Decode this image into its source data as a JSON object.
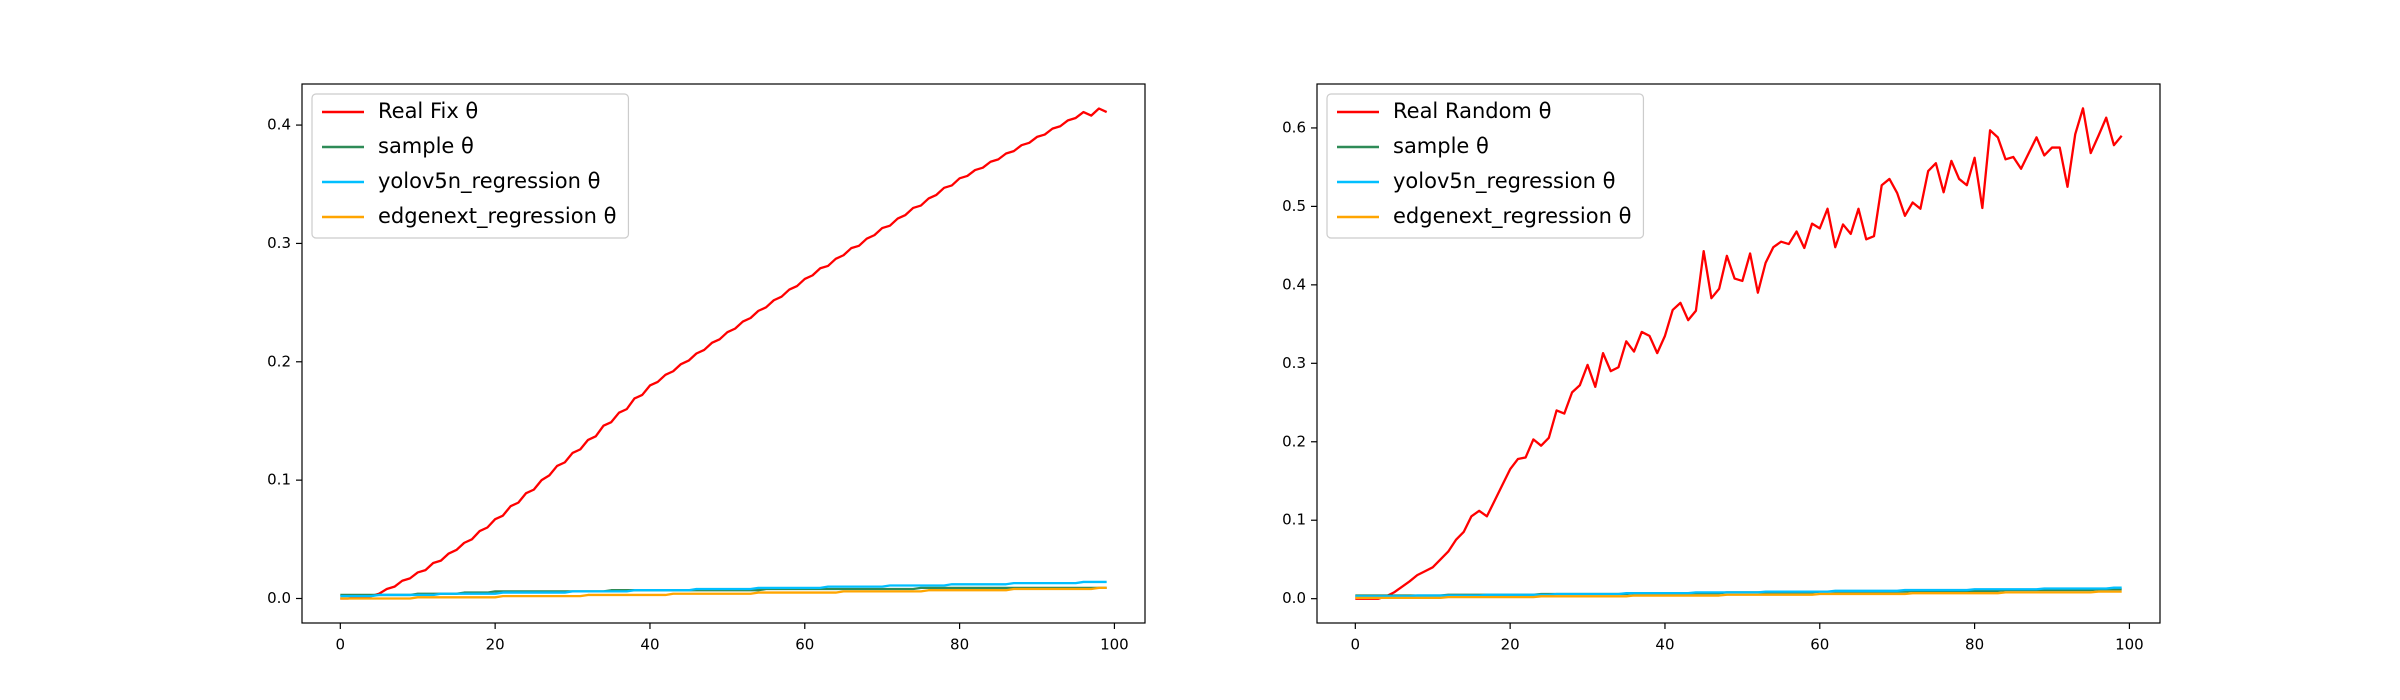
{
  "chart_data": [
    {
      "type": "line",
      "legend": "upper left",
      "xlim": [
        -4.95,
        103.95
      ],
      "ylim": [
        -0.0207,
        0.4347
      ],
      "xticks": [
        0,
        20,
        40,
        60,
        80,
        100
      ],
      "yticks": [
        {
          "value": 0,
          "label": "0.0"
        },
        0.1,
        0.2,
        0.3,
        0.4
      ],
      "x": [
        0,
        1,
        2,
        3,
        4,
        5,
        6,
        7,
        8,
        9,
        10,
        11,
        12,
        13,
        14,
        15,
        16,
        17,
        18,
        19,
        20,
        21,
        22,
        23,
        24,
        25,
        26,
        27,
        28,
        29,
        30,
        31,
        32,
        33,
        34,
        35,
        36,
        37,
        38,
        39,
        40,
        41,
        42,
        43,
        44,
        45,
        46,
        47,
        48,
        49,
        50,
        51,
        52,
        53,
        54,
        55,
        56,
        57,
        58,
        59,
        60,
        61,
        62,
        63,
        64,
        65,
        66,
        67,
        68,
        69,
        70,
        71,
        72,
        73,
        74,
        75,
        76,
        77,
        78,
        79,
        80,
        81,
        82,
        83,
        84,
        85,
        86,
        87,
        88,
        89,
        90,
        91,
        92,
        93,
        94,
        95,
        96,
        97,
        98,
        99
      ],
      "series": [
        {
          "name": "Real Fix θ",
          "color": "#ff0000",
          "values": [
            0.0,
            0.0,
            0.001,
            0.001,
            0.002,
            0.004,
            0.008,
            0.01,
            0.015,
            0.017,
            0.022,
            0.024,
            0.03,
            0.032,
            0.038,
            0.041,
            0.047,
            0.05,
            0.057,
            0.06,
            0.067,
            0.07,
            0.078,
            0.081,
            0.089,
            0.092,
            0.1,
            0.104,
            0.112,
            0.115,
            0.123,
            0.126,
            0.134,
            0.137,
            0.146,
            0.149,
            0.157,
            0.16,
            0.169,
            0.172,
            0.18,
            0.183,
            0.189,
            0.192,
            0.198,
            0.201,
            0.207,
            0.21,
            0.216,
            0.219,
            0.225,
            0.228,
            0.234,
            0.237,
            0.243,
            0.246,
            0.252,
            0.255,
            0.261,
            0.264,
            0.27,
            0.273,
            0.279,
            0.281,
            0.287,
            0.29,
            0.296,
            0.298,
            0.304,
            0.307,
            0.313,
            0.315,
            0.321,
            0.324,
            0.33,
            0.332,
            0.338,
            0.341,
            0.347,
            0.349,
            0.355,
            0.357,
            0.362,
            0.364,
            0.369,
            0.371,
            0.376,
            0.378,
            0.383,
            0.385,
            0.39,
            0.392,
            0.397,
            0.399,
            0.404,
            0.406,
            0.411,
            0.408,
            0.414,
            0.411
          ]
        },
        {
          "name": "sample θ",
          "color": "#2e8b57",
          "values": [
            0.003,
            0.003,
            0.003,
            0.003,
            0.003,
            0.003,
            0.003,
            0.003,
            0.003,
            0.003,
            0.004,
            0.004,
            0.004,
            0.004,
            0.004,
            0.004,
            0.005,
            0.005,
            0.005,
            0.005,
            0.006,
            0.006,
            0.006,
            0.006,
            0.006,
            0.006,
            0.006,
            0.006,
            0.006,
            0.006,
            0.006,
            0.006,
            0.006,
            0.006,
            0.006,
            0.007,
            0.007,
            0.007,
            0.007,
            0.007,
            0.007,
            0.007,
            0.007,
            0.007,
            0.007,
            0.007,
            0.007,
            0.007,
            0.007,
            0.007,
            0.007,
            0.007,
            0.007,
            0.007,
            0.007,
            0.008,
            0.008,
            0.008,
            0.008,
            0.008,
            0.008,
            0.008,
            0.008,
            0.008,
            0.008,
            0.008,
            0.008,
            0.008,
            0.008,
            0.008,
            0.008,
            0.008,
            0.008,
            0.008,
            0.008,
            0.009,
            0.009,
            0.009,
            0.009,
            0.009,
            0.009,
            0.009,
            0.009,
            0.009,
            0.009,
            0.009,
            0.009,
            0.009,
            0.009,
            0.009,
            0.009,
            0.009,
            0.009,
            0.009,
            0.009,
            0.009,
            0.009,
            0.009,
            0.009,
            0.009
          ]
        },
        {
          "name": "yolov5n_regression θ",
          "color": "#00bfff",
          "values": [
            0.002,
            0.002,
            0.002,
            0.002,
            0.002,
            0.003,
            0.003,
            0.003,
            0.003,
            0.003,
            0.003,
            0.003,
            0.003,
            0.004,
            0.004,
            0.004,
            0.004,
            0.004,
            0.004,
            0.004,
            0.004,
            0.005,
            0.005,
            0.005,
            0.005,
            0.005,
            0.005,
            0.005,
            0.005,
            0.005,
            0.006,
            0.006,
            0.006,
            0.006,
            0.006,
            0.006,
            0.006,
            0.006,
            0.007,
            0.007,
            0.007,
            0.007,
            0.007,
            0.007,
            0.007,
            0.007,
            0.008,
            0.008,
            0.008,
            0.008,
            0.008,
            0.008,
            0.008,
            0.008,
            0.009,
            0.009,
            0.009,
            0.009,
            0.009,
            0.009,
            0.009,
            0.009,
            0.009,
            0.01,
            0.01,
            0.01,
            0.01,
            0.01,
            0.01,
            0.01,
            0.01,
            0.011,
            0.011,
            0.011,
            0.011,
            0.011,
            0.011,
            0.011,
            0.011,
            0.012,
            0.012,
            0.012,
            0.012,
            0.012,
            0.012,
            0.012,
            0.012,
            0.013,
            0.013,
            0.013,
            0.013,
            0.013,
            0.013,
            0.013,
            0.013,
            0.013,
            0.014,
            0.014,
            0.014,
            0.014
          ]
        },
        {
          "name": "edgenext_regression θ",
          "color": "#ffa500",
          "values": [
            0.0,
            0.0,
            0.0,
            0.0,
            0.0,
            0.0,
            0.0,
            0.0,
            0.0,
            0.0,
            0.001,
            0.001,
            0.001,
            0.001,
            0.001,
            0.001,
            0.001,
            0.001,
            0.001,
            0.001,
            0.001,
            0.002,
            0.002,
            0.002,
            0.002,
            0.002,
            0.002,
            0.002,
            0.002,
            0.002,
            0.002,
            0.002,
            0.003,
            0.003,
            0.003,
            0.003,
            0.003,
            0.003,
            0.003,
            0.003,
            0.003,
            0.003,
            0.003,
            0.004,
            0.004,
            0.004,
            0.004,
            0.004,
            0.004,
            0.004,
            0.004,
            0.004,
            0.004,
            0.004,
            0.005,
            0.005,
            0.005,
            0.005,
            0.005,
            0.005,
            0.005,
            0.005,
            0.005,
            0.005,
            0.005,
            0.006,
            0.006,
            0.006,
            0.006,
            0.006,
            0.006,
            0.006,
            0.006,
            0.006,
            0.006,
            0.006,
            0.007,
            0.007,
            0.007,
            0.007,
            0.007,
            0.007,
            0.007,
            0.007,
            0.007,
            0.007,
            0.007,
            0.008,
            0.008,
            0.008,
            0.008,
            0.008,
            0.008,
            0.008,
            0.008,
            0.008,
            0.008,
            0.008,
            0.009,
            0.009
          ]
        }
      ]
    },
    {
      "type": "line",
      "legend": "upper left",
      "xlim": [
        -4.95,
        103.95
      ],
      "ylim": [
        -0.031,
        0.656
      ],
      "xticks": [
        0,
        20,
        40,
        60,
        80,
        100
      ],
      "yticks": [
        {
          "value": 0,
          "label": "0.0"
        },
        0.1,
        0.2,
        0.3,
        0.4,
        0.5,
        0.6
      ],
      "x": [
        0,
        1,
        2,
        3,
        4,
        5,
        6,
        7,
        8,
        9,
        10,
        11,
        12,
        13,
        14,
        15,
        16,
        17,
        18,
        19,
        20,
        21,
        22,
        23,
        24,
        25,
        26,
        27,
        28,
        29,
        30,
        31,
        32,
        33,
        34,
        35,
        36,
        37,
        38,
        39,
        40,
        41,
        42,
        43,
        44,
        45,
        46,
        47,
        48,
        49,
        50,
        51,
        52,
        53,
        54,
        55,
        56,
        57,
        58,
        59,
        60,
        61,
        62,
        63,
        64,
        65,
        66,
        67,
        68,
        69,
        70,
        71,
        72,
        73,
        74,
        75,
        76,
        77,
        78,
        79,
        80,
        81,
        82,
        83,
        84,
        85,
        86,
        87,
        88,
        89,
        90,
        91,
        92,
        93,
        94,
        95,
        96,
        97,
        98,
        99
      ],
      "series": [
        {
          "name": "Real Random θ",
          "color": "#ff0000",
          "values": [
            0.0,
            0.0,
            0.0,
            0.0,
            0.003,
            0.008,
            0.015,
            0.022,
            0.03,
            0.035,
            0.04,
            0.05,
            0.06,
            0.075,
            0.085,
            0.105,
            0.112,
            0.105,
            0.125,
            0.145,
            0.165,
            0.178,
            0.18,
            0.203,
            0.195,
            0.205,
            0.24,
            0.236,
            0.263,
            0.272,
            0.298,
            0.27,
            0.313,
            0.29,
            0.295,
            0.328,
            0.315,
            0.34,
            0.335,
            0.313,
            0.335,
            0.368,
            0.377,
            0.355,
            0.367,
            0.443,
            0.383,
            0.395,
            0.437,
            0.408,
            0.405,
            0.44,
            0.39,
            0.428,
            0.448,
            0.455,
            0.452,
            0.468,
            0.447,
            0.478,
            0.472,
            0.497,
            0.448,
            0.477,
            0.465,
            0.497,
            0.458,
            0.462,
            0.527,
            0.535,
            0.517,
            0.488,
            0.505,
            0.497,
            0.545,
            0.555,
            0.518,
            0.558,
            0.535,
            0.527,
            0.562,
            0.498,
            0.597,
            0.588,
            0.56,
            0.563,
            0.548,
            0.568,
            0.588,
            0.565,
            0.575,
            0.575,
            0.525,
            0.592,
            0.625,
            0.568,
            0.59,
            0.613,
            0.578,
            0.59
          ]
        },
        {
          "name": "sample θ",
          "color": "#2e8b57",
          "values": [
            0.004,
            0.004,
            0.004,
            0.004,
            0.004,
            0.004,
            0.004,
            0.004,
            0.004,
            0.004,
            0.004,
            0.004,
            0.005,
            0.005,
            0.005,
            0.005,
            0.005,
            0.005,
            0.005,
            0.005,
            0.005,
            0.005,
            0.005,
            0.005,
            0.006,
            0.006,
            0.006,
            0.006,
            0.006,
            0.006,
            0.006,
            0.006,
            0.006,
            0.006,
            0.006,
            0.006,
            0.007,
            0.007,
            0.007,
            0.007,
            0.007,
            0.007,
            0.007,
            0.007,
            0.007,
            0.007,
            0.007,
            0.007,
            0.008,
            0.008,
            0.008,
            0.008,
            0.008,
            0.008,
            0.008,
            0.008,
            0.008,
            0.008,
            0.008,
            0.008,
            0.009,
            0.009,
            0.009,
            0.009,
            0.009,
            0.009,
            0.009,
            0.009,
            0.009,
            0.009,
            0.009,
            0.009,
            0.01,
            0.01,
            0.01,
            0.01,
            0.01,
            0.01,
            0.01,
            0.01,
            0.01,
            0.01,
            0.01,
            0.01,
            0.011,
            0.011,
            0.011,
            0.011,
            0.011,
            0.011,
            0.011,
            0.011,
            0.011,
            0.011,
            0.011,
            0.011,
            0.012,
            0.012,
            0.012,
            0.012
          ]
        },
        {
          "name": "yolov5n_regression θ",
          "color": "#00bfff",
          "values": [
            0.003,
            0.003,
            0.003,
            0.003,
            0.003,
            0.003,
            0.003,
            0.003,
            0.004,
            0.004,
            0.004,
            0.004,
            0.004,
            0.004,
            0.004,
            0.004,
            0.004,
            0.005,
            0.005,
            0.005,
            0.005,
            0.005,
            0.005,
            0.005,
            0.005,
            0.005,
            0.006,
            0.006,
            0.006,
            0.006,
            0.006,
            0.006,
            0.006,
            0.006,
            0.006,
            0.007,
            0.007,
            0.007,
            0.007,
            0.007,
            0.007,
            0.007,
            0.007,
            0.007,
            0.008,
            0.008,
            0.008,
            0.008,
            0.008,
            0.008,
            0.008,
            0.008,
            0.008,
            0.009,
            0.009,
            0.009,
            0.009,
            0.009,
            0.009,
            0.009,
            0.009,
            0.009,
            0.01,
            0.01,
            0.01,
            0.01,
            0.01,
            0.01,
            0.01,
            0.01,
            0.01,
            0.011,
            0.011,
            0.011,
            0.011,
            0.011,
            0.011,
            0.011,
            0.011,
            0.011,
            0.012,
            0.012,
            0.012,
            0.012,
            0.012,
            0.012,
            0.012,
            0.012,
            0.012,
            0.013,
            0.013,
            0.013,
            0.013,
            0.013,
            0.013,
            0.013,
            0.013,
            0.013,
            0.014,
            0.014
          ]
        },
        {
          "name": "edgenext_regression θ",
          "color": "#ffa500",
          "values": [
            0.001,
            0.001,
            0.001,
            0.001,
            0.001,
            0.001,
            0.001,
            0.001,
            0.001,
            0.001,
            0.001,
            0.001,
            0.002,
            0.002,
            0.002,
            0.002,
            0.002,
            0.002,
            0.002,
            0.002,
            0.002,
            0.002,
            0.002,
            0.002,
            0.003,
            0.003,
            0.003,
            0.003,
            0.003,
            0.003,
            0.003,
            0.003,
            0.003,
            0.003,
            0.003,
            0.003,
            0.004,
            0.004,
            0.004,
            0.004,
            0.004,
            0.004,
            0.004,
            0.004,
            0.004,
            0.004,
            0.004,
            0.004,
            0.005,
            0.005,
            0.005,
            0.005,
            0.005,
            0.005,
            0.005,
            0.005,
            0.005,
            0.005,
            0.005,
            0.005,
            0.006,
            0.006,
            0.006,
            0.006,
            0.006,
            0.006,
            0.006,
            0.006,
            0.006,
            0.006,
            0.006,
            0.006,
            0.007,
            0.007,
            0.007,
            0.007,
            0.007,
            0.007,
            0.007,
            0.007,
            0.007,
            0.007,
            0.007,
            0.007,
            0.008,
            0.008,
            0.008,
            0.008,
            0.008,
            0.008,
            0.008,
            0.008,
            0.008,
            0.008,
            0.008,
            0.008,
            0.009,
            0.009,
            0.009,
            0.009
          ]
        }
      ]
    }
  ]
}
